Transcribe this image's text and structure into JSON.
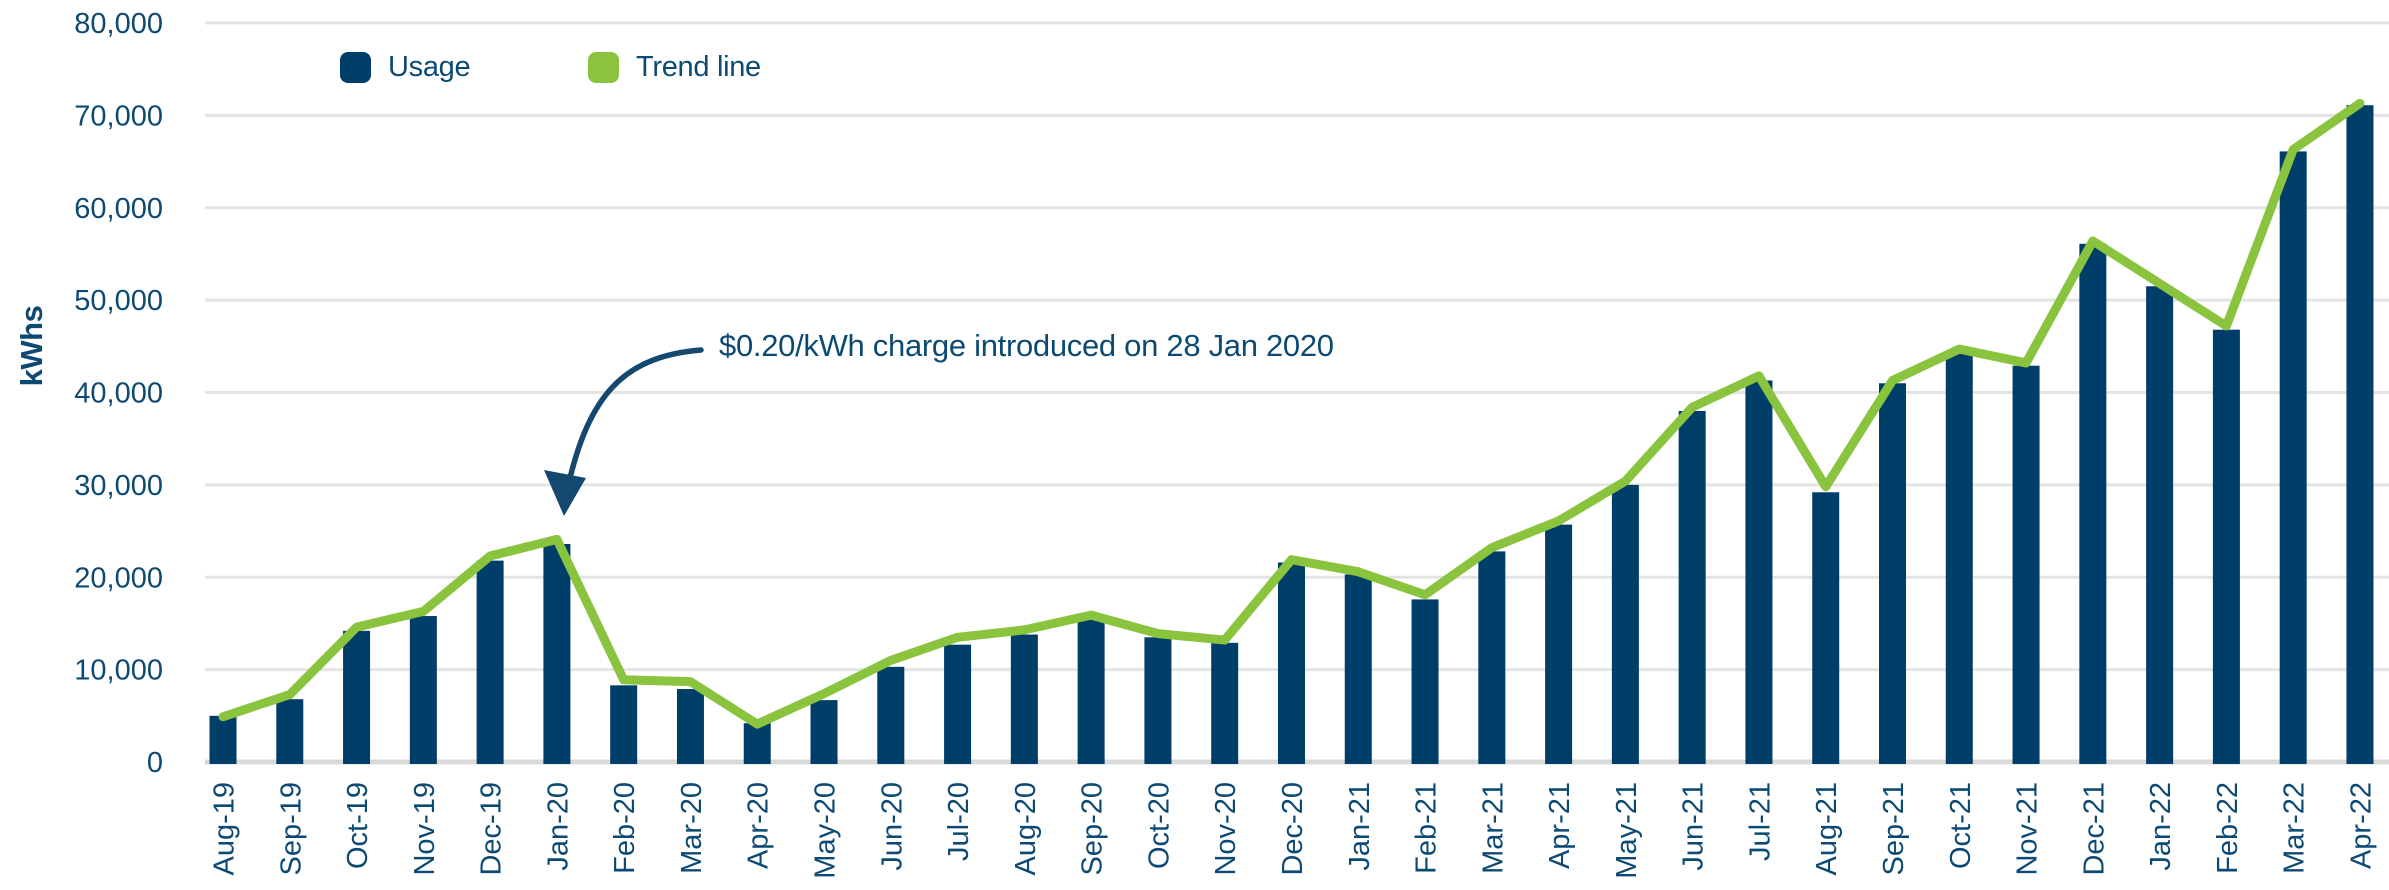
{
  "chart_data": {
    "type": "bar+line",
    "title": "",
    "ylabel": "kWhs",
    "xlabel": "",
    "ylim": [
      0,
      80000
    ],
    "yticks": [
      0,
      10000,
      20000,
      30000,
      40000,
      50000,
      60000,
      70000,
      80000
    ],
    "grid": "horizontal",
    "legend_position": "top-left",
    "categories": [
      "Aug-19",
      "Sep-19",
      "Oct-19",
      "Nov-19",
      "Dec-19",
      "Jan-20",
      "Feb-20",
      "Mar-20",
      "Apr-20",
      "May-20",
      "Jun-20",
      "Jul-20",
      "Aug-20",
      "Sep-20",
      "Oct-20",
      "Nov-20",
      "Dec-20",
      "Jan-21",
      "Feb-21",
      "Mar-21",
      "Apr-21",
      "May-21",
      "Jun-21",
      "Jul-21",
      "Aug-21",
      "Sep-21",
      "Oct-21",
      "Nov-21",
      "Dec-21",
      "Jan-22",
      "Feb-22",
      "Mar-22",
      "Apr-22"
    ],
    "series": [
      {
        "name": "Usage",
        "type": "bar",
        "color": "#003e6a",
        "values": [
          5000,
          6800,
          14200,
          15800,
          21800,
          23600,
          8300,
          7900,
          4200,
          6700,
          10300,
          12700,
          13800,
          15500,
          13500,
          12900,
          21600,
          20300,
          17600,
          22800,
          25700,
          30000,
          38000,
          41300,
          29200,
          41000,
          44200,
          42900,
          56100,
          51500,
          46800,
          66100,
          71100
        ]
      },
      {
        "name": "Trend line",
        "type": "line",
        "color": "#8ac43e",
        "values": [
          4900,
          7300,
          14600,
          16300,
          22300,
          24100,
          8900,
          8700,
          4100,
          7400,
          11000,
          13500,
          14300,
          15900,
          13900,
          13200,
          21900,
          20600,
          18100,
          23200,
          26100,
          30400,
          38400,
          41800,
          29800,
          41300,
          44700,
          43200,
          56400,
          51800,
          47200,
          66300,
          71300
        ]
      }
    ],
    "annotation": {
      "text": "$0.20/kWh charge introduced on 28 Jan 2020",
      "target_category": "Jan-20"
    },
    "colors": {
      "text": "#0d4a73",
      "gridline": "#e4e4e4",
      "baseline": "#d9d9d9",
      "arrow": "#14486f"
    }
  }
}
